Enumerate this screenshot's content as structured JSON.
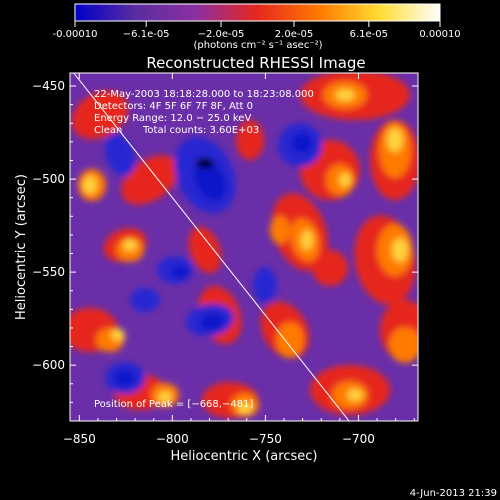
{
  "chart_data": {
    "type": "heatmap",
    "title": "Reconstructed RHESSI Image",
    "xlabel": "Heliocentric X (arcsec)",
    "ylabel": "Heliocentric Y (arcsec)",
    "xlim": [
      -855,
      -668
    ],
    "ylim": [
      -630,
      -443
    ],
    "x_ticks": [
      -850,
      -800,
      -750,
      -700
    ],
    "y_ticks": [
      -450,
      -500,
      -550,
      -600
    ],
    "x_tick_labels": [
      "−850",
      "−800",
      "−750",
      "−700"
    ],
    "y_tick_labels": [
      "−450",
      "−500",
      "−550",
      "−600"
    ],
    "colorbar": {
      "min": -0.0001,
      "max": 0.0001,
      "tick_values": [
        -0.0001,
        -6.1e-05,
        -2e-05,
        2e-05,
        6.1e-05,
        0.0001
      ],
      "tick_labels": [
        "-0.00010",
        "−6.1e-05",
        "−2.0e-05",
        "2.0e-05",
        "6.1e-05",
        "0.00010"
      ],
      "units_label": "(photons cm⁻² s⁻¹ asec⁻²)",
      "colors": [
        "#0000c8",
        "#5a2da0",
        "#8c2fa0",
        "#e6281e",
        "#ff7800",
        "#ffdc32",
        "#ffffff"
      ]
    },
    "annotations": {
      "time_range": "22-May-2003 18:18:28.000 to 18:23:08.000",
      "detectors": "Detectors: 4F 5F 6F 7F 8F, Att 0",
      "energy_range": "Energy Range: 12.0 − 25.0 keV",
      "method": "Clean",
      "total_counts": "Total counts: 3.60E+03",
      "peak": "Position of Peak = [−668,−481]"
    },
    "peak_position": [
      -668,
      -481
    ],
    "limb_line": [
      [
        -853,
        -443
      ],
      [
        -705,
        -630
      ]
    ],
    "timestamp": "4-Jun-2013 21:39"
  }
}
